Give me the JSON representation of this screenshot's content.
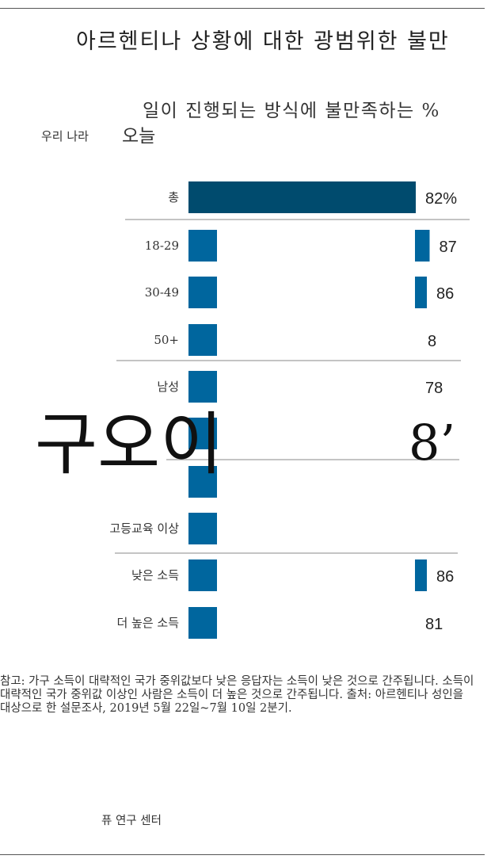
{
  "title": "아르헨티나 상황에 대한 광범위한 불만",
  "subtitle": "일이 진행되는 방식에 불만족하는 %",
  "header_left": "우리 나라",
  "header_right": "오늘",
  "overlay_text": "구오이",
  "overlay_number": "8’",
  "note": "참고: 가구 소득이 대략적인 국가 중위값보다 낮은 응답자는 소득이 낮은 것으로 간주됩니다. 소득이 대략적인 국가 중위값 이상인 사람은 소득이 더 높은 것으로 간주됩니다. 출처: 아르헨티나 성인을 대상으로 한 설문조사, 2019년 5월 22일~7월 10일 2분기.",
  "source": "퓨 연구 센터",
  "colors": {
    "total_bar": "#004b6e",
    "group_bar": "#00669e"
  },
  "chart_data": {
    "type": "bar",
    "orientation": "horizontal",
    "xlim": [
      0,
      100
    ],
    "categories": [
      "총",
      "18-29",
      "30-49",
      "50+",
      "남성",
      "",
      "",
      "고등교육 이상",
      "낮은 소득",
      "더 높은 소득"
    ],
    "values": [
      82,
      87,
      86,
      null,
      78,
      null,
      null,
      null,
      86,
      81
    ],
    "value_labels": [
      "82%",
      "87",
      "86",
      "8",
      "78",
      "",
      "",
      "",
      "86",
      "81"
    ]
  }
}
